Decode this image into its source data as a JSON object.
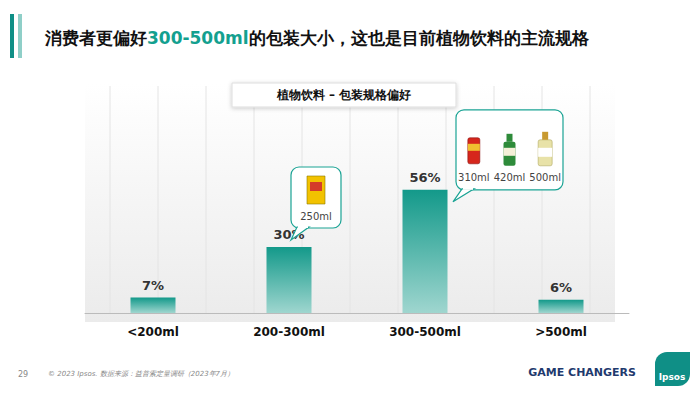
{
  "title": "消费者更偏好300-500ml的包装大小，这也是目前植物饮料的主流规格",
  "title_highlight": "300-500ml",
  "chart_data": {
    "type": "bar",
    "subtitle": "植物饮料 – 包装规格偏好",
    "categories": [
      "<200ml",
      "200-300ml",
      "300-500ml",
      ">500ml"
    ],
    "values": [
      7,
      30,
      56,
      6
    ],
    "value_labels": [
      "7%",
      "30%",
      "56%",
      "6%"
    ],
    "color": "#13998a",
    "ylim": [
      0,
      100
    ],
    "grid": false,
    "data_labels": true,
    "tick_labels": "x",
    "annotations": [
      {
        "category": "200-300ml",
        "labels": [
          "250ml"
        ]
      },
      {
        "category": "300-500ml",
        "labels": [
          "310ml",
          "420ml",
          "500ml"
        ]
      }
    ]
  },
  "footer": {
    "page": "29",
    "source": "© 2023 Ipsos. 数据来源：益普索定量调研（2023年7月）",
    "slogan": "GAME CHANGERS",
    "logo": "Ipsos"
  }
}
